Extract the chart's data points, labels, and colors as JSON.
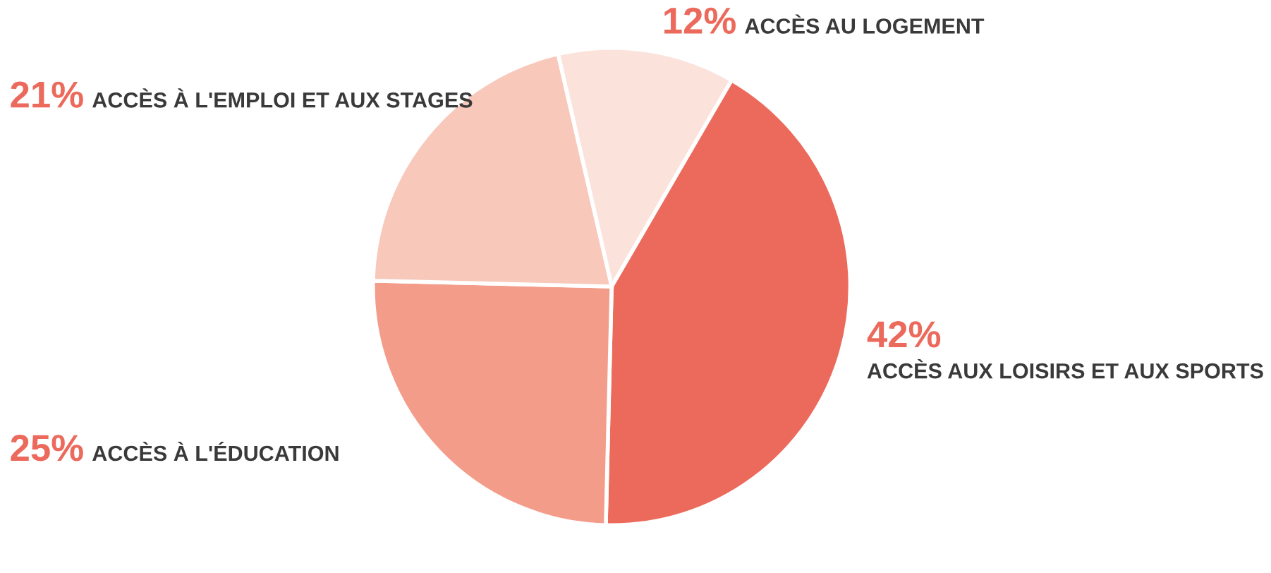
{
  "chart_data": {
    "type": "pie",
    "categories": [
      "ACCÈS AU LOGEMENT",
      "ACCÈS AUX LOISIRS ET AUX SPORTS",
      "ACCÈS À L'ÉDUCATION",
      "ACCÈS À L'EMPLOI ET AUX STAGES"
    ],
    "values": [
      12,
      42,
      25,
      21
    ],
    "value_labels": [
      "12%",
      "42%",
      "25%",
      "21%"
    ],
    "colors": [
      "#fbe3dc",
      "#ec6a5c",
      "#f39c8a",
      "#f8c8bb"
    ]
  }
}
